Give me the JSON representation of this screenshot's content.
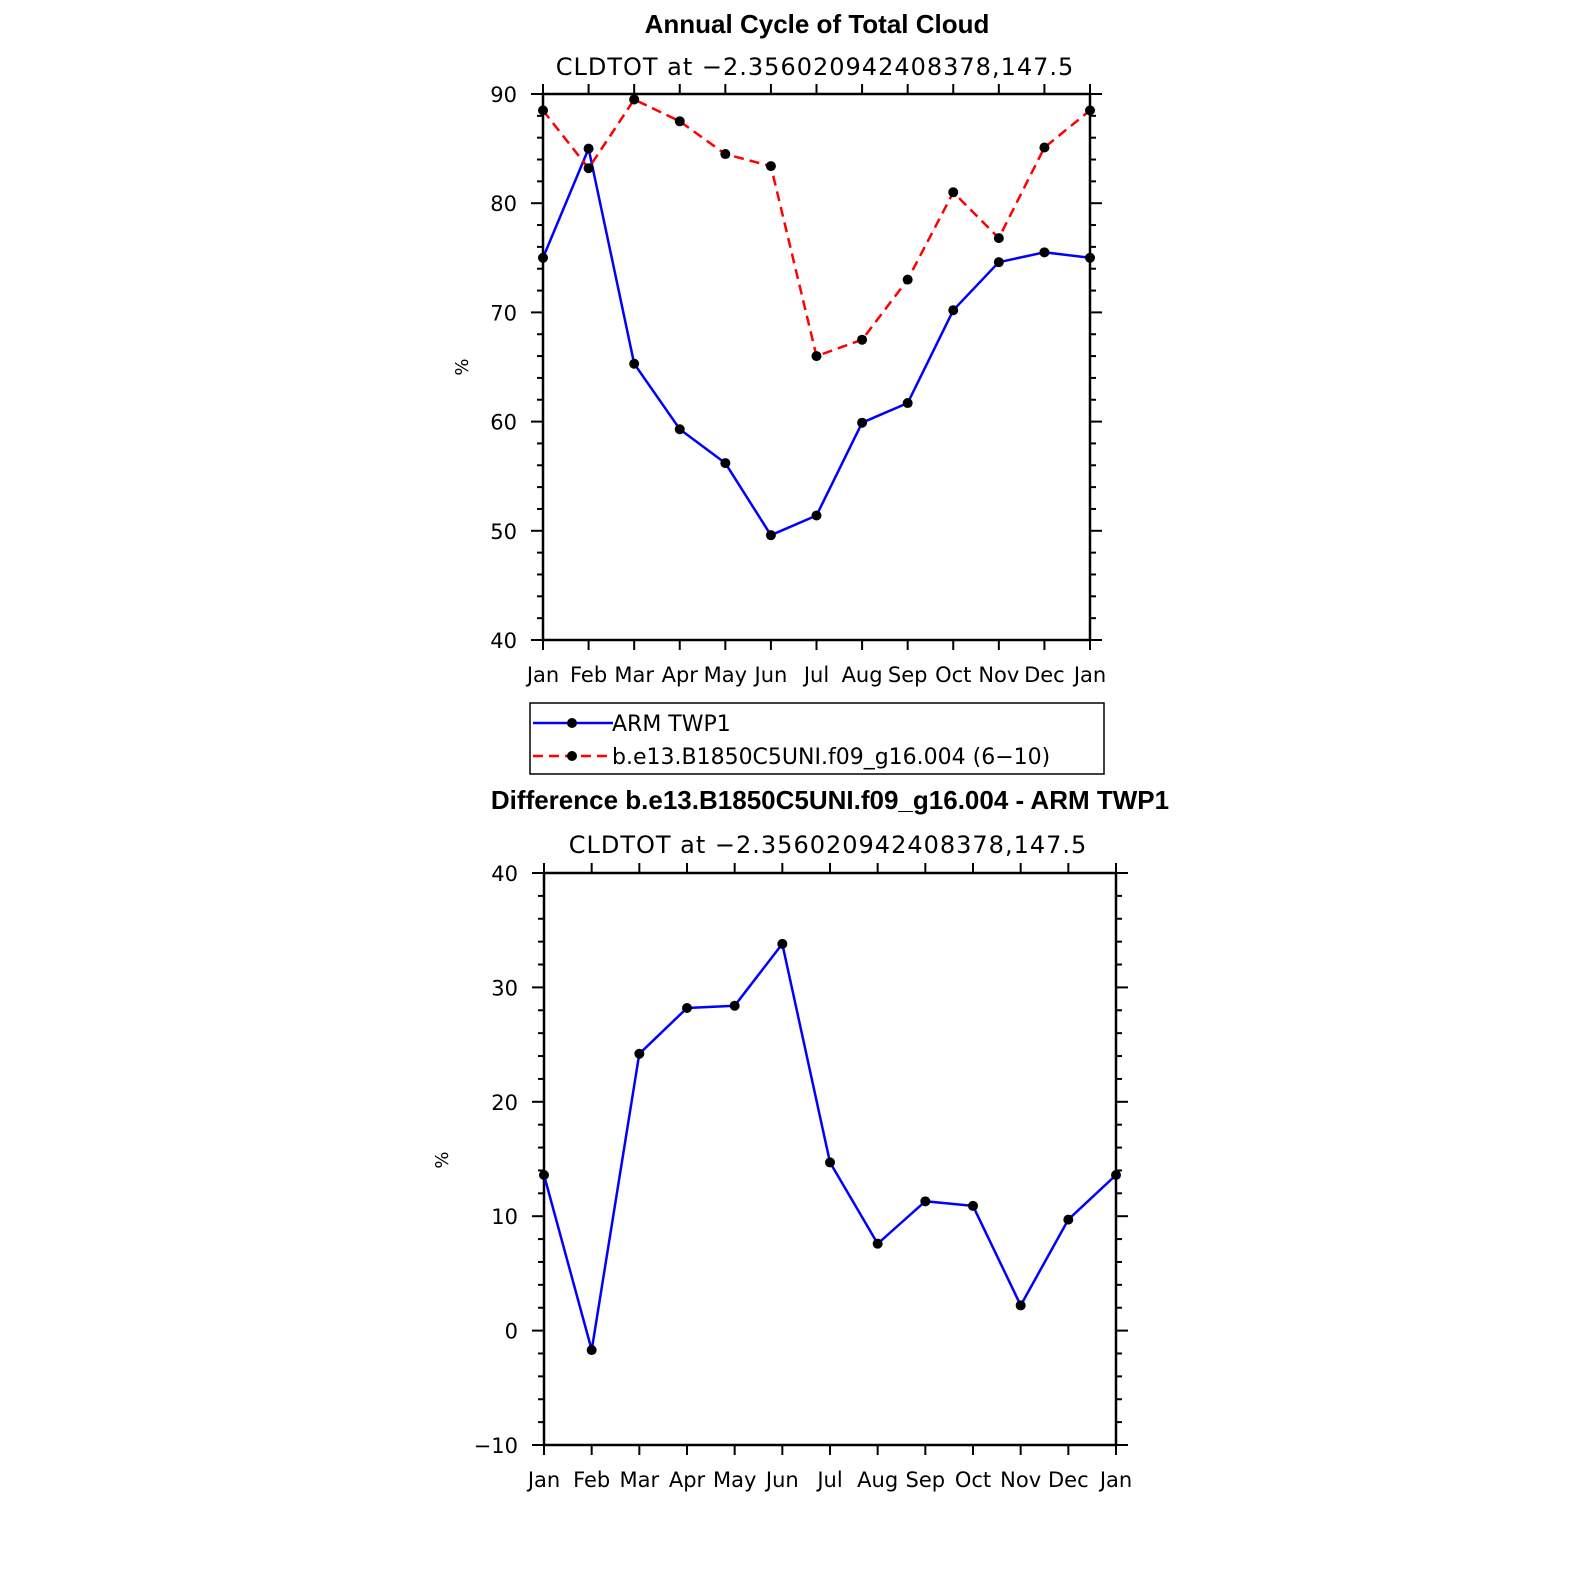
{
  "chart_data": [
    {
      "type": "line",
      "title": "Annual Cycle of Total Cloud",
      "subtitle": "CLDTOT at −2.356020942408378,147.5",
      "xlabel": "",
      "ylabel": "%",
      "ylim": [
        40,
        90
      ],
      "yticks": [
        "40",
        "50",
        "60",
        "70",
        "80",
        "90"
      ],
      "categories": [
        "Jan",
        "Feb",
        "Mar",
        "Apr",
        "May",
        "Jun",
        "Jul",
        "Aug",
        "Sep",
        "Oct",
        "Nov",
        "Dec",
        "Jan"
      ],
      "series": [
        {
          "name": "ARM TWP1",
          "color": "#0000ff",
          "style": "solid",
          "values": [
            75.0,
            85.0,
            65.3,
            59.3,
            56.2,
            49.6,
            51.4,
            59.9,
            61.7,
            70.2,
            74.6,
            75.5,
            75.0
          ]
        },
        {
          "name": "b.e13.B1850C5UNI.f09_g16.004 (6−10)",
          "color": "#ff0000",
          "style": "dashed",
          "values": [
            88.5,
            83.2,
            89.5,
            87.5,
            84.5,
            83.4,
            66.0,
            67.5,
            73.0,
            81.0,
            76.8,
            85.1,
            88.5
          ]
        }
      ],
      "legend_position": "below"
    },
    {
      "type": "line",
      "title": "Difference b.e13.B1850C5UNI.f09_g16.004 - ARM TWP1",
      "subtitle": "CLDTOT at −2.356020942408378,147.5",
      "xlabel": "",
      "ylabel": "%",
      "ylim": [
        -10,
        40
      ],
      "yticks": [
        "−10",
        "0",
        "10",
        "20",
        "30",
        "40"
      ],
      "categories": [
        "Jan",
        "Feb",
        "Mar",
        "Apr",
        "May",
        "Jun",
        "Jul",
        "Aug",
        "Sep",
        "Oct",
        "Nov",
        "Dec",
        "Jan"
      ],
      "series": [
        {
          "name": "Difference",
          "color": "#0000ff",
          "style": "solid",
          "values": [
            13.6,
            -1.7,
            24.2,
            28.2,
            28.4,
            33.8,
            14.7,
            7.6,
            11.3,
            10.9,
            2.2,
            9.7,
            13.6
          ]
        }
      ]
    }
  ]
}
